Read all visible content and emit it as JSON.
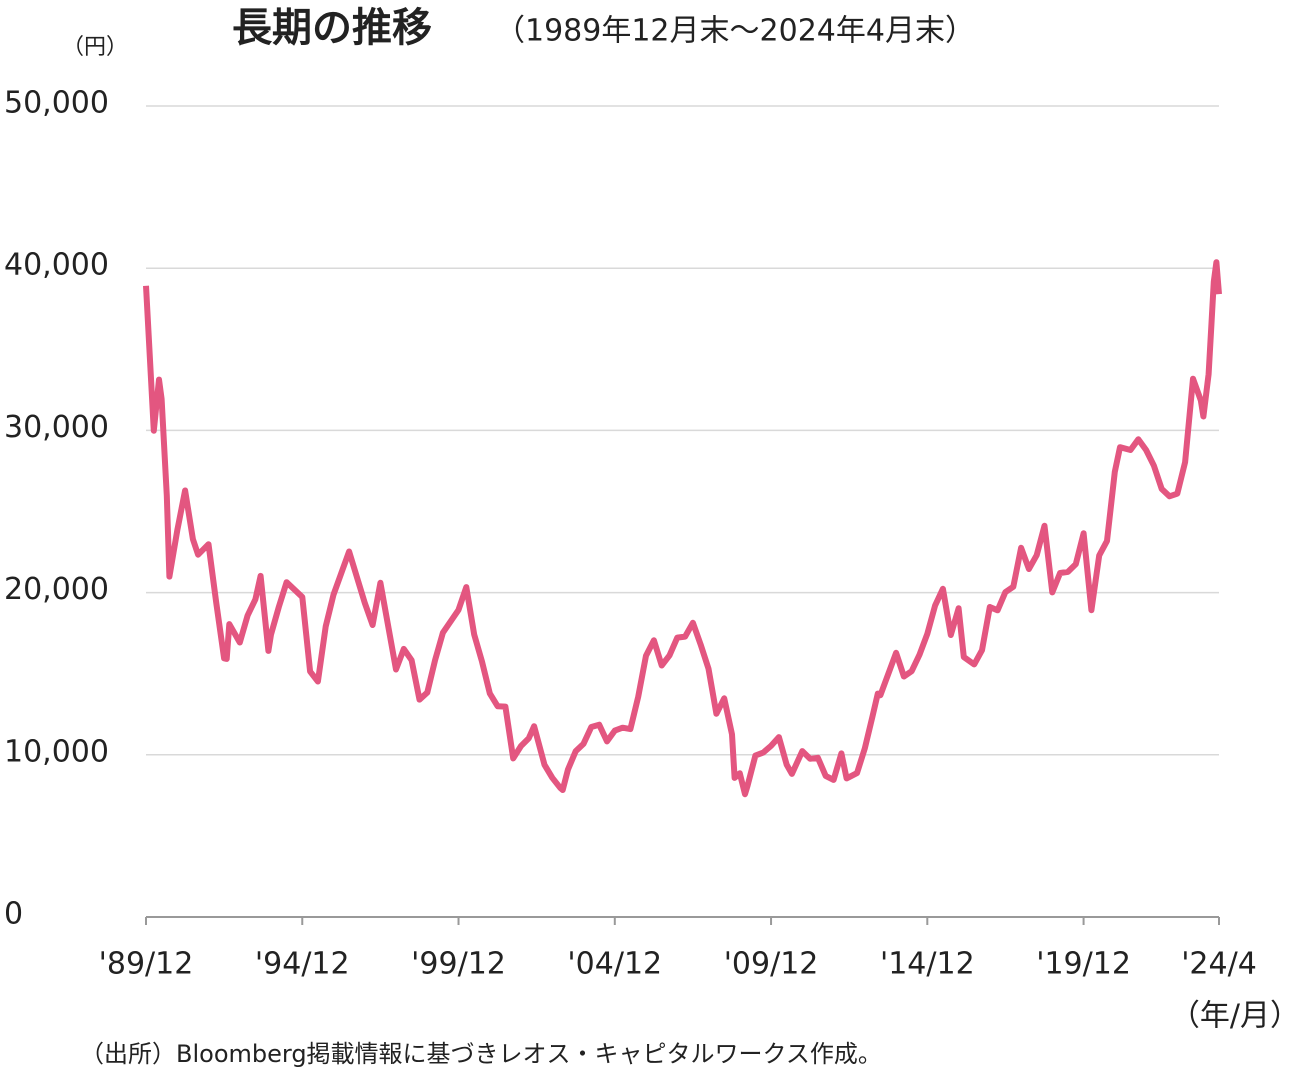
{
  "chart_data": {
    "type": "line",
    "title": "長期の推移",
    "subtitle": "（1989年12月末〜2024年4月末）",
    "y_unit": "（円）",
    "x_unit": "（年/月）",
    "source": "（出所）Bloomberg掲載情報に基づきレオス・キャピタルワークス作成。",
    "color": "#e35680",
    "grid": true,
    "xlim": [
      "1989-12",
      "2024-04"
    ],
    "xticks": [
      {
        "value": "1989-12",
        "label": "'89/12"
      },
      {
        "value": "1994-12",
        "label": "'94/12"
      },
      {
        "value": "1999-12",
        "label": "'99/12"
      },
      {
        "value": "2004-12",
        "label": "'04/12"
      },
      {
        "value": "2009-12",
        "label": "'09/12"
      },
      {
        "value": "2014-12",
        "label": "'14/12"
      },
      {
        "value": "2019-12",
        "label": "'19/12"
      },
      {
        "value": "2024-04",
        "label": "'24/4"
      }
    ],
    "ylim": [
      0,
      50000
    ],
    "yticks": [
      0,
      {
        "value": 10000,
        "label": "10,000"
      },
      {
        "value": 20000,
        "label": "20,000"
      },
      {
        "value": 30000,
        "label": "30,000"
      },
      {
        "value": 40000,
        "label": "40,000"
      },
      {
        "value": 50000,
        "label": "50,000"
      }
    ],
    "x": [
      "1989-12",
      "1990-03",
      "1990-05",
      "1990-06",
      "1990-08",
      "1990-09",
      "1990-12",
      "1991-03",
      "1991-06",
      "1991-08",
      "1991-12",
      "1992-03",
      "1992-06",
      "1992-07",
      "1992-08",
      "1992-12",
      "1993-03",
      "1993-06",
      "1993-08",
      "1993-11",
      "1993-12",
      "1994-03",
      "1994-06",
      "1994-12",
      "1995-03",
      "1995-06",
      "1995-09",
      "1995-12",
      "1996-06",
      "1996-12",
      "1997-03",
      "1997-06",
      "1997-12",
      "1998-03",
      "1998-06",
      "1998-09",
      "1998-12",
      "1999-03",
      "1999-06",
      "1999-12",
      "2000-03",
      "2000-06",
      "2000-09",
      "2000-12",
      "2001-03",
      "2001-06",
      "2001-09",
      "2001-12",
      "2002-03",
      "2002-05",
      "2002-09",
      "2002-12",
      "2003-03",
      "2003-04",
      "2003-06",
      "2003-09",
      "2003-12",
      "2004-03",
      "2004-06",
      "2004-09",
      "2004-12",
      "2005-03",
      "2005-06",
      "2005-09",
      "2005-12",
      "2006-03",
      "2006-06",
      "2006-09",
      "2006-12",
      "2007-03",
      "2007-06",
      "2007-09",
      "2007-12",
      "2008-03",
      "2008-06",
      "2008-09",
      "2008-10",
      "2008-12",
      "2009-02",
      "2009-03",
      "2009-06",
      "2009-09",
      "2009-12",
      "2010-03",
      "2010-06",
      "2010-08",
      "2010-12",
      "2011-03",
      "2011-06",
      "2011-09",
      "2011-12",
      "2012-03",
      "2012-05",
      "2012-09",
      "2012-12",
      "2013-03",
      "2013-05",
      "2013-06",
      "2013-12",
      "2014-03",
      "2014-06",
      "2014-09",
      "2014-12",
      "2015-03",
      "2015-06",
      "2015-09",
      "2015-12",
      "2016-02",
      "2016-06",
      "2016-09",
      "2016-12",
      "2017-03",
      "2017-06",
      "2017-09",
      "2017-12",
      "2018-03",
      "2018-06",
      "2018-09",
      "2018-12",
      "2019-03",
      "2019-06",
      "2019-09",
      "2019-12",
      "2020-03",
      "2020-06",
      "2020-09",
      "2020-12",
      "2021-02",
      "2021-06",
      "2021-09",
      "2021-12",
      "2022-03",
      "2022-06",
      "2022-09",
      "2022-12",
      "2023-03",
      "2023-06",
      "2023-09",
      "2023-10",
      "2023-12",
      "2024-01",
      "2024-02",
      "2024-03",
      "2024-04"
    ],
    "values": [
      38916,
      29980,
      33130,
      31940,
      25978,
      20984,
      23849,
      26292,
      23291,
      22336,
      22984,
      19346,
      15952,
      15910,
      18061,
      16925,
      18591,
      19590,
      21027,
      16408,
      17417,
      19112,
      20644,
      19723,
      15140,
      14517,
      17913,
      19868,
      22531,
      19361,
      18003,
      20605,
      15258,
      16527,
      15830,
      13406,
      13842,
      15837,
      17530,
      18934,
      20337,
      17411,
      15747,
      13786,
      12999,
      12969,
      9775,
      10543,
      11025,
      11764,
      9383,
      8579,
      7973,
      7831,
      9083,
      10219,
      10677,
      11715,
      11858,
      10824,
      11489,
      11668,
      11584,
      13574,
      16111,
      17060,
      15505,
      16128,
      17226,
      17288,
      18138,
      16786,
      15308,
      12526,
      13481,
      11260,
      8577,
      8860,
      7568,
      8110,
      9958,
      10133,
      10546,
      11090,
      9383,
      8824,
      10229,
      9755,
      9816,
      8700,
      8455,
      10084,
      8543,
      8870,
      10395,
      12398,
      13774,
      13677,
      16291,
      14828,
      15162,
      16174,
      17451,
      19207,
      20236,
      17388,
      19034,
      16027,
      15576,
      16450,
      19114,
      18909,
      20033,
      20356,
      22765,
      21454,
      22305,
      24120,
      20015,
      21206,
      21276,
      21756,
      23657,
      18917,
      22288,
      23185,
      27444,
      28966,
      28792,
      29453,
      28792,
      27821,
      26393,
      25937,
      26095,
      28041,
      33189,
      31858,
      30859,
      33464,
      36287,
      39166,
      40369,
      38406
    ]
  }
}
